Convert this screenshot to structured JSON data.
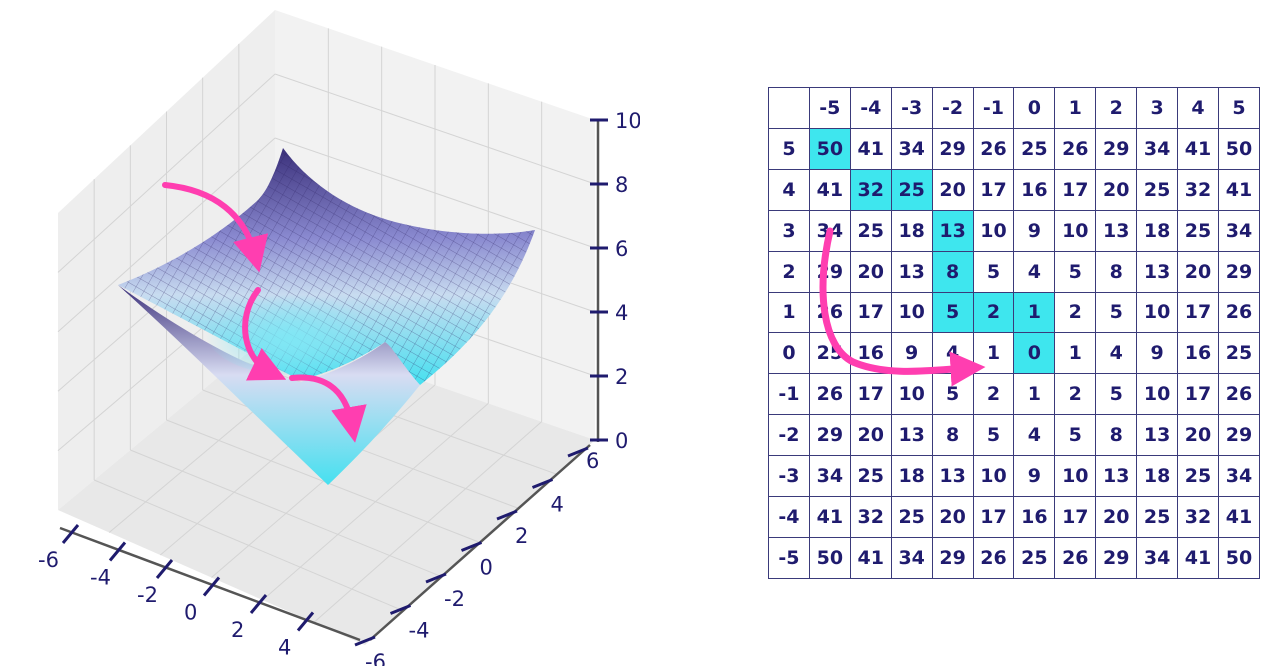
{
  "colors": {
    "text": "#1f1b6e",
    "highlight": "#3ee6ee",
    "arrow": "#ff3eb0",
    "surface_high": "#3a2f7a",
    "surface_low": "#45e0f0"
  },
  "plot3d": {
    "x_ticks": [
      "-6",
      "-4",
      "-2",
      "0",
      "2",
      "4"
    ],
    "y_ticks": [
      "6",
      "4",
      "2",
      "0",
      "-2",
      "-4",
      "-6"
    ],
    "z_ticks": [
      "10",
      "8",
      "6",
      "4",
      "2",
      "0"
    ]
  },
  "grid": {
    "col_headers": [
      "-5",
      "-4",
      "-3",
      "-2",
      "-1",
      "0",
      "1",
      "2",
      "3",
      "4",
      "5"
    ],
    "row_headers": [
      "5",
      "4",
      "3",
      "2",
      "1",
      "0",
      "-1",
      "-2",
      "-3",
      "-4",
      "-5"
    ],
    "rows": [
      [
        "50",
        "41",
        "34",
        "29",
        "26",
        "25",
        "26",
        "29",
        "34",
        "41",
        "50"
      ],
      [
        "41",
        "32",
        "25",
        "20",
        "17",
        "16",
        "17",
        "20",
        "25",
        "32",
        "41"
      ],
      [
        "34",
        "25",
        "18",
        "13",
        "10",
        "9",
        "10",
        "13",
        "18",
        "25",
        "34"
      ],
      [
        "29",
        "20",
        "13",
        "8",
        "5",
        "4",
        "5",
        "8",
        "13",
        "20",
        "29"
      ],
      [
        "26",
        "17",
        "10",
        "5",
        "2",
        "1",
        "2",
        "5",
        "10",
        "17",
        "26"
      ],
      [
        "25",
        "16",
        "9",
        "4",
        "1",
        "0",
        "1",
        "4",
        "9",
        "16",
        "25"
      ],
      [
        "26",
        "17",
        "10",
        "5",
        "2",
        "1",
        "2",
        "5",
        "10",
        "17",
        "26"
      ],
      [
        "29",
        "20",
        "13",
        "8",
        "5",
        "4",
        "5",
        "8",
        "13",
        "20",
        "29"
      ],
      [
        "34",
        "25",
        "18",
        "13",
        "10",
        "9",
        "10",
        "13",
        "18",
        "25",
        "34"
      ],
      [
        "41",
        "32",
        "25",
        "20",
        "17",
        "16",
        "17",
        "20",
        "25",
        "32",
        "41"
      ],
      [
        "50",
        "41",
        "34",
        "29",
        "26",
        "25",
        "26",
        "29",
        "34",
        "41",
        "50"
      ]
    ],
    "highlighted": [
      [
        0,
        0
      ],
      [
        1,
        1
      ],
      [
        1,
        2
      ],
      [
        2,
        3
      ],
      [
        3,
        3
      ],
      [
        4,
        3
      ],
      [
        4,
        4
      ],
      [
        4,
        5
      ],
      [
        5,
        5
      ]
    ]
  }
}
